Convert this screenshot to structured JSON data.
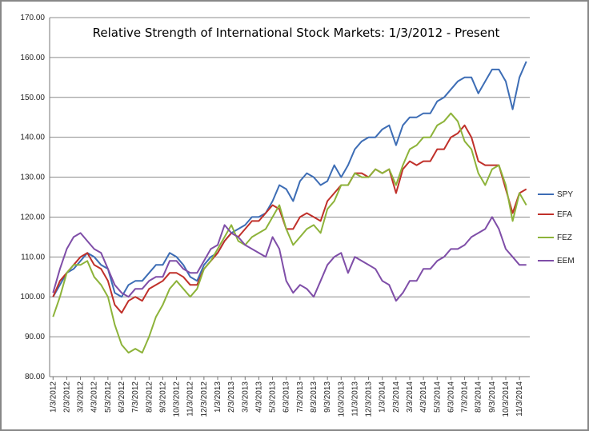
{
  "chart_data": {
    "type": "line",
    "title": "Relative Strength of International Stock Markets:  1/3/2012 - Present",
    "categories": [
      "1/3/2012",
      null,
      "2/3/2012",
      null,
      "3/3/2012",
      null,
      "4/3/2012",
      null,
      "5/3/2012",
      null,
      "6/3/2012",
      null,
      "7/3/2012",
      null,
      "8/3/2012",
      null,
      "9/3/2012",
      null,
      "10/3/2012",
      null,
      "11/3/2012",
      null,
      "12/3/2012",
      null,
      "1/3/2013",
      null,
      "2/3/2013",
      null,
      "3/3/2013",
      null,
      "4/3/2013",
      null,
      "5/3/2013",
      null,
      "6/3/2013",
      null,
      "7/3/2013",
      null,
      "8/3/2013",
      null,
      "9/3/2013",
      null,
      "10/3/2013",
      null,
      "11/3/2013",
      null,
      "12/3/2013",
      null,
      "1/3/2014",
      null,
      "2/3/2014",
      null,
      "3/3/2014",
      null,
      "4/3/2014",
      null,
      "5/3/2014",
      null,
      "6/3/2014",
      null,
      "7/3/2014",
      null,
      "8/3/2014",
      null,
      "9/3/2014",
      null,
      "10/3/2014",
      null,
      "11/3/2014",
      null
    ],
    "series": [
      {
        "name": "SPY",
        "color": "#3d6db5",
        "values": [
          100,
          103,
          106,
          107,
          109,
          111,
          110,
          108,
          107,
          101,
          100,
          103,
          104,
          104,
          106,
          108,
          108,
          111,
          110,
          108,
          105,
          104,
          108,
          110,
          111,
          114,
          116,
          117,
          118,
          120,
          120,
          121,
          124,
          128,
          127,
          124,
          129,
          131,
          130,
          128,
          129,
          133,
          130,
          133,
          137,
          139,
          140,
          140,
          142,
          143,
          138,
          143,
          145,
          145,
          146,
          146,
          149,
          150,
          152,
          154,
          155,
          155,
          151,
          154,
          157,
          157,
          154,
          147,
          155,
          159
        ]
      },
      {
        "name": "EFA",
        "color": "#c0302a",
        "values": [
          100,
          104,
          106,
          108,
          110,
          111,
          108,
          107,
          104,
          98,
          96,
          99,
          100,
          99,
          102,
          103,
          104,
          106,
          106,
          105,
          103,
          103,
          107,
          109,
          111,
          114,
          116,
          115,
          117,
          119,
          119,
          121,
          123,
          122,
          117,
          117,
          120,
          121,
          120,
          119,
          124,
          126,
          128,
          128,
          131,
          131,
          130,
          132,
          131,
          132,
          126,
          132,
          134,
          133,
          134,
          134,
          137,
          137,
          140,
          141,
          143,
          140,
          134,
          133,
          133,
          133,
          127,
          121,
          126,
          127
        ]
      },
      {
        "name": "FEZ",
        "color": "#8db33a",
        "values": [
          95,
          100,
          106,
          108,
          108,
          109,
          105,
          103,
          100,
          93,
          88,
          86,
          87,
          86,
          90,
          95,
          98,
          102,
          104,
          102,
          100,
          102,
          107,
          109,
          112,
          115,
          118,
          114,
          113,
          115,
          116,
          117,
          120,
          123,
          117,
          113,
          115,
          117,
          118,
          116,
          122,
          124,
          128,
          128,
          131,
          130,
          130,
          132,
          131,
          132,
          128,
          133,
          137,
          138,
          140,
          140,
          143,
          144,
          146,
          144,
          139,
          137,
          131,
          128,
          132,
          133,
          128,
          119,
          126,
          123
        ]
      },
      {
        "name": "EEM",
        "color": "#7f4ea8",
        "values": [
          101,
          107,
          112,
          115,
          116,
          114,
          112,
          111,
          107,
          103,
          101,
          100,
          102,
          102,
          104,
          105,
          105,
          109,
          109,
          107,
          106,
          106,
          109,
          112,
          113,
          118,
          116,
          115,
          113,
          112,
          111,
          110,
          115,
          112,
          104,
          101,
          103,
          102,
          100,
          104,
          108,
          110,
          111,
          106,
          110,
          109,
          108,
          107,
          104,
          103,
          99,
          101,
          104,
          104,
          107,
          107,
          109,
          110,
          112,
          112,
          113,
          115,
          116,
          117,
          120,
          117,
          112,
          110,
          108,
          108
        ]
      }
    ],
    "ylim": [
      80,
      170
    ],
    "yticks": [
      {
        "value": 80,
        "label": "80.00"
      },
      {
        "value": 90,
        "label": "90.00"
      },
      {
        "value": 100,
        "label": "100.00"
      },
      {
        "value": 110,
        "label": "110.00"
      },
      {
        "value": 120,
        "label": "120.00"
      },
      {
        "value": 130,
        "label": "130.00"
      },
      {
        "value": 140,
        "label": "140.00"
      },
      {
        "value": 150,
        "label": "150.00"
      },
      {
        "value": 160,
        "label": "160.00"
      },
      {
        "value": 170,
        "label": "170.00"
      }
    ],
    "grid": true,
    "legend": "right"
  }
}
